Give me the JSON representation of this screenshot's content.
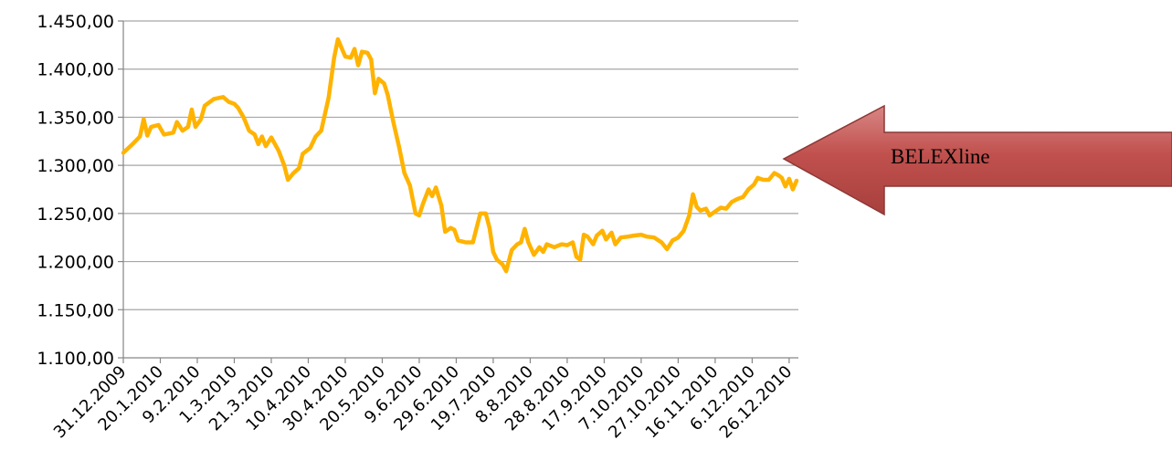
{
  "chart_data": {
    "type": "line",
    "title": "",
    "xlabel": "",
    "ylabel": "",
    "ylim": [
      1100,
      1450
    ],
    "y_ticks": [
      1100,
      1150,
      1200,
      1250,
      1300,
      1350,
      1400,
      1450
    ],
    "y_tick_labels": [
      "1.100,00",
      "1.150,00",
      "1.200,00",
      "1.250,00",
      "1.300,00",
      "1.350,00",
      "1.400,00",
      "1.450,00"
    ],
    "x_tick_labels": [
      "31.12.2009",
      "20.1.2010",
      "9.2.2010",
      "1.3.2010",
      "21.3.2010",
      "10.4.2010",
      "30.4.2010",
      "20.5.2010",
      "9.6.2010",
      "29.6.2010",
      "19.7.2010",
      "8.8.2010",
      "28.8.2010",
      "17.9.2010",
      "7.10.2010",
      "27.10.2010",
      "16.11.2010",
      "6.12.2010",
      "26.12.2010"
    ],
    "x_tick_dates": [
      "2009-12-31",
      "2010-01-20",
      "2010-02-09",
      "2010-03-01",
      "2010-03-21",
      "2010-04-10",
      "2010-04-30",
      "2010-05-20",
      "2010-06-09",
      "2010-06-29",
      "2010-07-19",
      "2010-08-08",
      "2010-08-28",
      "2010-09-17",
      "2010-10-07",
      "2010-10-27",
      "2010-11-16",
      "2010-12-06",
      "2010-12-26"
    ],
    "x_range": [
      "2009-12-31",
      "2010-12-31"
    ],
    "grid": "horizontal",
    "line_color": "#FFB300",
    "series": [
      {
        "name": "",
        "points": [
          [
            "2009-12-31",
            1313
          ],
          [
            "2010-01-05",
            1322
          ],
          [
            "2010-01-09",
            1330
          ],
          [
            "2010-01-11",
            1348
          ],
          [
            "2010-01-13",
            1331
          ],
          [
            "2010-01-15",
            1340
          ],
          [
            "2010-01-19",
            1342
          ],
          [
            "2010-01-22",
            1332
          ],
          [
            "2010-01-27",
            1334
          ],
          [
            "2010-01-29",
            1345
          ],
          [
            "2010-02-01",
            1336
          ],
          [
            "2010-02-04",
            1340
          ],
          [
            "2010-02-06",
            1358
          ],
          [
            "2010-02-08",
            1340
          ],
          [
            "2010-02-11",
            1348
          ],
          [
            "2010-02-13",
            1362
          ],
          [
            "2010-02-18",
            1369
          ],
          [
            "2010-02-23",
            1371
          ],
          [
            "2010-02-26",
            1366
          ],
          [
            "2010-03-01",
            1364
          ],
          [
            "2010-03-03",
            1360
          ],
          [
            "2010-03-06",
            1350
          ],
          [
            "2010-03-09",
            1336
          ],
          [
            "2010-03-12",
            1332
          ],
          [
            "2010-03-14",
            1322
          ],
          [
            "2010-03-16",
            1330
          ],
          [
            "2010-03-18",
            1320
          ],
          [
            "2010-03-21",
            1329
          ],
          [
            "2010-03-25",
            1315
          ],
          [
            "2010-03-28",
            1300
          ],
          [
            "2010-03-30",
            1285
          ],
          [
            "2010-04-02",
            1292
          ],
          [
            "2010-04-05",
            1297
          ],
          [
            "2010-04-07",
            1312
          ],
          [
            "2010-04-11",
            1318
          ],
          [
            "2010-04-14",
            1330
          ],
          [
            "2010-04-17",
            1336
          ],
          [
            "2010-04-21",
            1370
          ],
          [
            "2010-04-24",
            1412
          ],
          [
            "2010-04-26",
            1431
          ],
          [
            "2010-04-28",
            1422
          ],
          [
            "2010-04-30",
            1413
          ],
          [
            "2010-05-03",
            1412
          ],
          [
            "2010-05-05",
            1421
          ],
          [
            "2010-05-07",
            1404
          ],
          [
            "2010-05-09",
            1418
          ],
          [
            "2010-05-12",
            1417
          ],
          [
            "2010-05-14",
            1410
          ],
          [
            "2010-05-16",
            1375
          ],
          [
            "2010-05-18",
            1390
          ],
          [
            "2010-05-21",
            1385
          ],
          [
            "2010-05-23",
            1373
          ],
          [
            "2010-05-26",
            1345
          ],
          [
            "2010-05-29",
            1320
          ],
          [
            "2010-06-01",
            1292
          ],
          [
            "2010-06-04",
            1279
          ],
          [
            "2010-06-07",
            1250
          ],
          [
            "2010-06-09",
            1248
          ],
          [
            "2010-06-11",
            1260
          ],
          [
            "2010-06-14",
            1275
          ],
          [
            "2010-06-16",
            1268
          ],
          [
            "2010-06-18",
            1277
          ],
          [
            "2010-06-21",
            1258
          ],
          [
            "2010-06-23",
            1231
          ],
          [
            "2010-06-26",
            1235
          ],
          [
            "2010-06-28",
            1233
          ],
          [
            "2010-06-30",
            1222
          ],
          [
            "2010-07-04",
            1220
          ],
          [
            "2010-07-08",
            1220
          ],
          [
            "2010-07-10",
            1235
          ],
          [
            "2010-07-12",
            1250
          ],
          [
            "2010-07-15",
            1250
          ],
          [
            "2010-07-17",
            1235
          ],
          [
            "2010-07-19",
            1210
          ],
          [
            "2010-07-21",
            1202
          ],
          [
            "2010-07-24",
            1197
          ],
          [
            "2010-07-26",
            1190
          ],
          [
            "2010-07-29",
            1212
          ],
          [
            "2010-08-01",
            1218
          ],
          [
            "2010-08-03",
            1220
          ],
          [
            "2010-08-05",
            1234
          ],
          [
            "2010-08-07",
            1220
          ],
          [
            "2010-08-10",
            1207
          ],
          [
            "2010-08-13",
            1215
          ],
          [
            "2010-08-15",
            1210
          ],
          [
            "2010-08-17",
            1218
          ],
          [
            "2010-08-21",
            1215
          ],
          [
            "2010-08-25",
            1218
          ],
          [
            "2010-08-28",
            1217
          ],
          [
            "2010-08-31",
            1220
          ],
          [
            "2010-09-02",
            1205
          ],
          [
            "2010-09-04",
            1202
          ],
          [
            "2010-09-06",
            1228
          ],
          [
            "2010-09-08",
            1226
          ],
          [
            "2010-09-11",
            1218
          ],
          [
            "2010-09-13",
            1227
          ],
          [
            "2010-09-16",
            1232
          ],
          [
            "2010-09-18",
            1223
          ],
          [
            "2010-09-21",
            1230
          ],
          [
            "2010-09-23",
            1218
          ],
          [
            "2010-09-26",
            1225
          ],
          [
            "2010-09-30",
            1226
          ],
          [
            "2010-10-03",
            1227
          ],
          [
            "2010-10-07",
            1228
          ],
          [
            "2010-10-10",
            1226
          ],
          [
            "2010-10-14",
            1225
          ],
          [
            "2010-10-18",
            1220
          ],
          [
            "2010-10-21",
            1213
          ],
          [
            "2010-10-24",
            1222
          ],
          [
            "2010-10-27",
            1225
          ],
          [
            "2010-10-30",
            1232
          ],
          [
            "2010-11-02",
            1248
          ],
          [
            "2010-11-04",
            1270
          ],
          [
            "2010-11-06",
            1257
          ],
          [
            "2010-11-08",
            1253
          ],
          [
            "2010-11-11",
            1255
          ],
          [
            "2010-11-13",
            1248
          ],
          [
            "2010-11-16",
            1252
          ],
          [
            "2010-11-19",
            1256
          ],
          [
            "2010-11-22",
            1255
          ],
          [
            "2010-11-25",
            1262
          ],
          [
            "2010-11-28",
            1265
          ],
          [
            "2010-12-01",
            1267
          ],
          [
            "2010-12-04",
            1275
          ],
          [
            "2010-12-07",
            1280
          ],
          [
            "2010-12-09",
            1287
          ],
          [
            "2010-12-12",
            1285
          ],
          [
            "2010-12-15",
            1285
          ],
          [
            "2010-12-18",
            1292
          ],
          [
            "2010-12-20",
            1290
          ],
          [
            "2010-12-22",
            1287
          ],
          [
            "2010-12-24",
            1278
          ],
          [
            "2010-12-26",
            1286
          ],
          [
            "2010-12-28",
            1275
          ],
          [
            "2010-12-30",
            1284
          ]
        ]
      }
    ]
  },
  "callout": {
    "label": "BELEXline",
    "fill_color": "#C0504D"
  }
}
